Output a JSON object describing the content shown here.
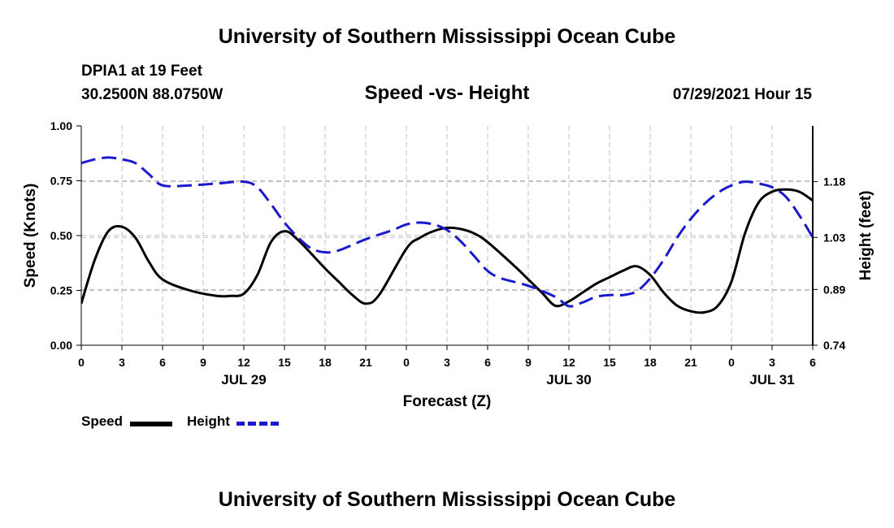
{
  "header": {
    "title_top": "University of Southern Mississippi Ocean Cube",
    "station": "DPIA1 at 19 Feet",
    "coords": "30.2500N  88.0750W",
    "chart_title": "Speed -vs- Height",
    "timestamp": "07/29/2021 Hour 15",
    "title_bottom": "University of Southern Mississippi Ocean Cube"
  },
  "legend": {
    "speed_label": "Speed",
    "height_label": "Height"
  },
  "colors": {
    "speed": "#000000",
    "height": "#1a1acc",
    "grid": "#bfbfbf"
  },
  "chart_data": {
    "type": "line",
    "title": "Speed -vs- Height",
    "xlabel": "Forecast (Z)",
    "ylabel": "Speed (Knots)",
    "y2label": "Height (feet)",
    "xlim": [
      0,
      54
    ],
    "ylim": [
      0,
      1.0
    ],
    "y2lim": [
      0.74,
      1.33
    ],
    "x_ticks": [
      0,
      3,
      6,
      9,
      12,
      15,
      18,
      21,
      24,
      27,
      30,
      33,
      36,
      39,
      42,
      45,
      48,
      51,
      54
    ],
    "x_tick_labels": [
      "0",
      "3",
      "6",
      "9",
      "12",
      "15",
      "18",
      "21",
      "0",
      "3",
      "6",
      "9",
      "12",
      "15",
      "18",
      "21",
      "0",
      "3",
      "6"
    ],
    "y_ticks": [
      0,
      0.25,
      0.5,
      0.75,
      1.0
    ],
    "y_tick_labels": [
      "0.00",
      "0.25",
      "0.50",
      "0.75",
      "1.00"
    ],
    "y2_ticks": [
      0.74,
      0.89,
      1.03,
      1.18
    ],
    "y2_tick_labels": [
      "0.74",
      "0.89",
      "1.03",
      "1.18"
    ],
    "date_labels": [
      {
        "x": 12,
        "label": "JUL 29"
      },
      {
        "x": 36,
        "label": "JUL 30"
      },
      {
        "x": 51,
        "label": "JUL 31"
      }
    ],
    "grid": true,
    "series": [
      {
        "name": "Speed",
        "axis": "left",
        "style": "solid",
        "x": [
          0,
          1,
          2,
          3,
          4,
          5,
          6,
          8,
          10,
          11,
          12,
          13,
          14,
          15,
          16,
          18,
          19,
          20,
          21,
          22,
          24,
          25,
          26,
          27,
          28,
          29,
          30,
          32,
          33,
          34,
          35,
          36,
          37,
          38,
          39,
          40,
          41,
          42,
          43,
          44,
          45,
          46,
          47,
          48,
          49,
          50,
          51,
          52,
          53,
          54
        ],
        "values": [
          0.19,
          0.39,
          0.52,
          0.54,
          0.49,
          0.38,
          0.3,
          0.25,
          0.225,
          0.225,
          0.235,
          0.32,
          0.47,
          0.52,
          0.48,
          0.35,
          0.29,
          0.23,
          0.19,
          0.23,
          0.44,
          0.49,
          0.52,
          0.535,
          0.53,
          0.51,
          0.47,
          0.36,
          0.3,
          0.24,
          0.18,
          0.2,
          0.24,
          0.28,
          0.31,
          0.34,
          0.36,
          0.32,
          0.24,
          0.18,
          0.155,
          0.15,
          0.18,
          0.29,
          0.51,
          0.65,
          0.7,
          0.71,
          0.7,
          0.66
        ]
      },
      {
        "name": "Height",
        "axis": "right",
        "style": "dashed",
        "x": [
          0,
          1,
          2,
          3,
          4,
          5,
          6,
          8,
          10,
          12,
          13,
          14,
          15,
          16,
          17,
          18,
          19,
          21,
          23,
          24,
          25,
          26,
          27,
          28,
          29,
          30,
          31,
          33,
          35,
          36,
          37,
          38,
          39,
          40,
          41,
          42,
          43,
          44,
          45,
          46,
          47,
          48,
          49,
          50,
          51,
          52,
          53,
          54
        ],
        "values": [
          1.23,
          1.24,
          1.245,
          1.24,
          1.23,
          1.2,
          1.17,
          1.17,
          1.175,
          1.18,
          1.165,
          1.12,
          1.07,
          1.03,
          1.0,
          0.99,
          0.995,
          1.025,
          1.05,
          1.065,
          1.07,
          1.065,
          1.05,
          1.02,
          0.98,
          0.94,
          0.92,
          0.9,
          0.87,
          0.845,
          0.855,
          0.87,
          0.875,
          0.875,
          0.885,
          0.92,
          0.97,
          1.03,
          1.08,
          1.12,
          1.15,
          1.17,
          1.18,
          1.175,
          1.165,
          1.14,
          1.09,
          1.03
        ]
      }
    ]
  }
}
